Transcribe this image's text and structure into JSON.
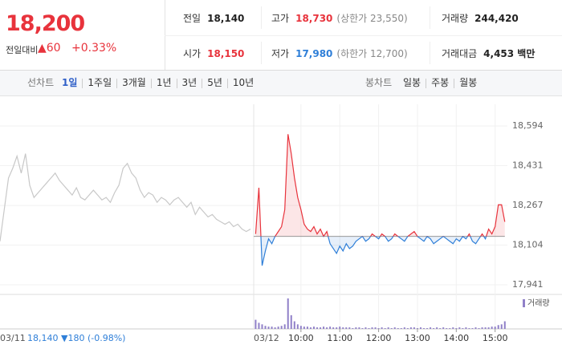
{
  "header": {
    "price": "18,200",
    "change_label": "전일대비",
    "change": "▲60",
    "change_rate": "+0.33%"
  },
  "stats": [
    {
      "label": "전일",
      "value": "18,140",
      "color": "#222"
    },
    {
      "label": "고가",
      "value": "18,730",
      "note": "(상한가 23,550)",
      "color": "#e8333c"
    },
    {
      "label": "거래량",
      "value": "244,420",
      "color": "#222"
    },
    {
      "label": "시가",
      "value": "18,150",
      "color": "#e8333c"
    },
    {
      "label": "저가",
      "value": "17,980",
      "note": "(하한가 12,700)",
      "color": "#2f7fd8"
    },
    {
      "label": "거래대금",
      "value": "4,453 백만",
      "color": "#222"
    }
  ],
  "tabs": {
    "line_label": "선차트",
    "periods": [
      "1일",
      "1주일",
      "3개월",
      "1년",
      "3년",
      "5년",
      "10년"
    ],
    "selected": 0,
    "candle_label": "봉차트",
    "candles": [
      "일봉",
      "주봉",
      "월봉"
    ]
  },
  "chart_data": {
    "type": "line",
    "ylim": [
      17918,
      18683
    ],
    "yticks": [
      {
        "value": 18594,
        "label": "18,594"
      },
      {
        "value": 18431,
        "label": "18,431"
      },
      {
        "value": 18267,
        "label": "18,267"
      },
      {
        "value": 18104,
        "label": "18,104"
      },
      {
        "value": 17941,
        "label": "17,941"
      }
    ],
    "grid": true,
    "baseline": 18140,
    "previous": {
      "date": "03/11",
      "summary": "18,140 ▼180 (-0.98%)",
      "color": "#c8c8c8",
      "values": [
        18120,
        18250,
        18380,
        18420,
        18470,
        18400,
        18480,
        18350,
        18300,
        18320,
        18340,
        18360,
        18380,
        18400,
        18370,
        18350,
        18330,
        18310,
        18340,
        18300,
        18290,
        18310,
        18330,
        18310,
        18290,
        18300,
        18280,
        18320,
        18350,
        18420,
        18440,
        18400,
        18380,
        18330,
        18300,
        18320,
        18310,
        18280,
        18300,
        18290,
        18270,
        18290,
        18300,
        18280,
        18260,
        18280,
        18230,
        18260,
        18240,
        18220,
        18230,
        18210,
        18200,
        18190,
        18200,
        18180,
        18190,
        18170,
        18160,
        18170
      ]
    },
    "today": {
      "date": "03/12",
      "up_color": "#e8333c",
      "down_color": "#2f7fd8",
      "xlim": [
        527,
        919
      ],
      "xticks": [
        {
          "value": 600,
          "label": "10:00"
        },
        {
          "value": 660,
          "label": "11:00"
        },
        {
          "value": 720,
          "label": "12:00"
        },
        {
          "value": 780,
          "label": "13:00"
        },
        {
          "value": 840,
          "label": "14:00"
        },
        {
          "value": 900,
          "label": "15:00"
        }
      ],
      "x": [
        530,
        535,
        540,
        545,
        550,
        555,
        560,
        565,
        570,
        575,
        580,
        585,
        590,
        595,
        600,
        605,
        610,
        615,
        620,
        625,
        630,
        635,
        640,
        645,
        650,
        655,
        660,
        665,
        670,
        675,
        680,
        685,
        690,
        695,
        700,
        705,
        710,
        715,
        720,
        725,
        730,
        735,
        740,
        745,
        750,
        755,
        760,
        765,
        770,
        775,
        780,
        785,
        790,
        795,
        800,
        805,
        810,
        815,
        820,
        825,
        830,
        835,
        840,
        845,
        850,
        855,
        860,
        865,
        870,
        875,
        880,
        885,
        890,
        895,
        900,
        905,
        910,
        915
      ],
      "values": [
        18150,
        18340,
        18020,
        18080,
        18130,
        18110,
        18140,
        18160,
        18180,
        18250,
        18560,
        18480,
        18380,
        18300,
        18250,
        18190,
        18170,
        18160,
        18180,
        18150,
        18170,
        18140,
        18160,
        18110,
        18090,
        18070,
        18100,
        18080,
        18110,
        18090,
        18100,
        18120,
        18130,
        18140,
        18120,
        18130,
        18150,
        18140,
        18130,
        18150,
        18140,
        18120,
        18130,
        18150,
        18140,
        18130,
        18120,
        18140,
        18150,
        18160,
        18140,
        18130,
        18120,
        18140,
        18130,
        18110,
        18120,
        18130,
        18140,
        18130,
        18120,
        18110,
        18130,
        18120,
        18140,
        18130,
        18150,
        18120,
        18110,
        18130,
        18150,
        18130,
        18170,
        18150,
        18180,
        18270,
        18270,
        18200
      ],
      "volume": [
        12,
        8,
        6,
        4,
        3,
        3,
        2,
        3,
        4,
        6,
        40,
        18,
        10,
        6,
        4,
        3,
        3,
        2,
        3,
        2,
        2,
        3,
        2,
        3,
        2,
        2,
        3,
        2,
        2,
        2,
        1,
        2,
        2,
        1,
        2,
        1,
        2,
        2,
        1,
        2,
        1,
        2,
        1,
        2,
        1,
        1,
        2,
        1,
        2,
        2,
        1,
        2,
        1,
        1,
        2,
        1,
        2,
        1,
        2,
        1,
        1,
        2,
        1,
        2,
        1,
        2,
        1,
        1,
        2,
        1,
        2,
        2,
        2,
        3,
        3,
        5,
        6,
        10
      ]
    },
    "volume_label": "거래량",
    "volume_color": "#9080c8"
  }
}
